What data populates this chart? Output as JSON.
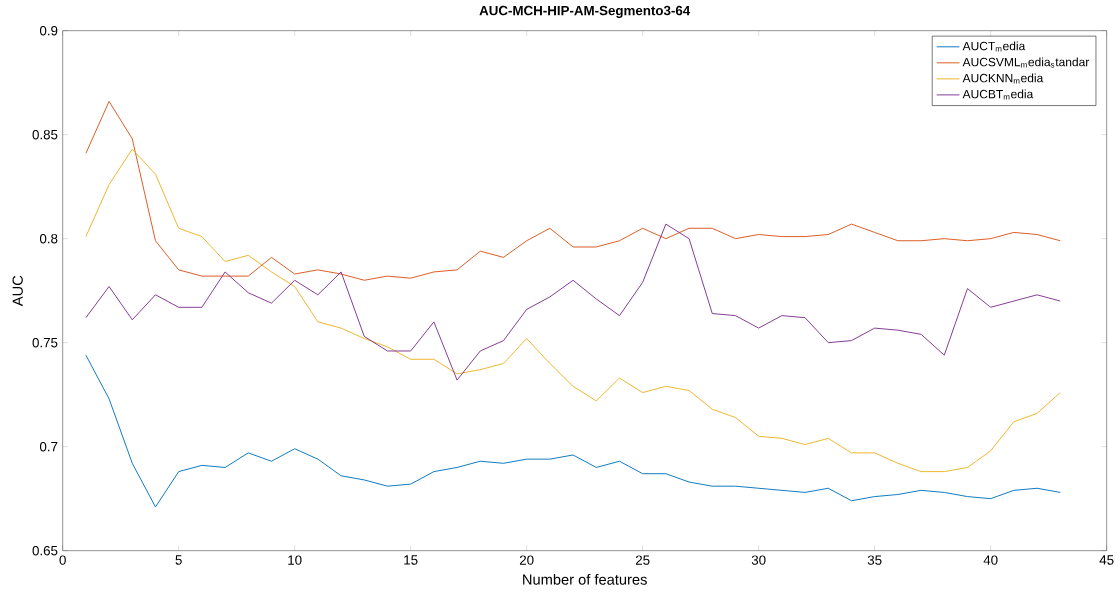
{
  "chart_data": {
    "type": "line",
    "title": "AUC-MCH-HIP-AM-Segmento3-64",
    "xlabel": "Number of features",
    "ylabel": "AUC",
    "x": [
      1,
      2,
      3,
      4,
      5,
      6,
      7,
      8,
      9,
      10,
      11,
      12,
      13,
      14,
      15,
      16,
      17,
      18,
      19,
      20,
      21,
      22,
      23,
      24,
      25,
      26,
      27,
      28,
      29,
      30,
      31,
      32,
      33,
      34,
      35,
      36,
      37,
      38,
      39,
      40,
      41,
      42,
      43
    ],
    "series": [
      {
        "name": "AUCT$_{m}$edia",
        "color": "#0072bd",
        "values": [
          0.744,
          0.723,
          0.692,
          0.671,
          0.688,
          0.691,
          0.69,
          0.697,
          0.693,
          0.699,
          0.694,
          0.686,
          0.684,
          0.681,
          0.682,
          0.688,
          0.69,
          0.693,
          0.692,
          0.694,
          0.694,
          0.696,
          0.69,
          0.693,
          0.687,
          0.687,
          0.683,
          0.681,
          0.681,
          0.68,
          0.679,
          0.678,
          0.68,
          0.674,
          0.676,
          0.677,
          0.679,
          0.678,
          0.676,
          0.675,
          0.679,
          0.68,
          0.678
        ]
      },
      {
        "name": "AUCSVML$_{m}$edia$_{s}$tandar",
        "color": "#d95319",
        "values": [
          0.841,
          0.866,
          0.848,
          0.799,
          0.785,
          0.782,
          0.782,
          0.782,
          0.791,
          0.783,
          0.785,
          0.783,
          0.78,
          0.782,
          0.781,
          0.784,
          0.785,
          0.794,
          0.791,
          0.799,
          0.805,
          0.796,
          0.796,
          0.799,
          0.805,
          0.8,
          0.805,
          0.805,
          0.8,
          0.802,
          0.801,
          0.801,
          0.802,
          0.807,
          0.803,
          0.799,
          0.799,
          0.8,
          0.799,
          0.8,
          0.803,
          0.802,
          0.799
        ]
      },
      {
        "name": "AUCKNN$_{m}$edia",
        "color": "#edb120",
        "values": [
          0.801,
          0.826,
          0.843,
          0.831,
          0.805,
          0.801,
          0.789,
          0.792,
          0.784,
          0.777,
          0.76,
          0.757,
          0.752,
          0.748,
          0.742,
          0.742,
          0.735,
          0.737,
          0.74,
          0.752,
          0.74,
          0.729,
          0.722,
          0.733,
          0.726,
          0.729,
          0.727,
          0.718,
          0.714,
          0.705,
          0.704,
          0.701,
          0.704,
          0.697,
          0.697,
          0.692,
          0.688,
          0.688,
          0.69,
          0.698,
          0.712,
          0.716,
          0.726
        ]
      },
      {
        "name": "AUCBT$_{m}$edia",
        "color": "#7e2f8e",
        "values": [
          0.762,
          0.777,
          0.761,
          0.773,
          0.767,
          0.767,
          0.784,
          0.774,
          0.769,
          0.78,
          0.773,
          0.784,
          0.753,
          0.746,
          0.746,
          0.76,
          0.732,
          0.746,
          0.751,
          0.766,
          0.772,
          0.78,
          0.771,
          0.763,
          0.779,
          0.807,
          0.8,
          0.764,
          0.763,
          0.757,
          0.763,
          0.762,
          0.75,
          0.751,
          0.757,
          0.756,
          0.754,
          0.744,
          0.776,
          0.767,
          0.77,
          0.773,
          0.77
        ]
      }
    ],
    "xlim": [
      0,
      45
    ],
    "xticks": [
      0,
      5,
      10,
      15,
      20,
      25,
      30,
      35,
      40,
      45
    ],
    "ylim": [
      0.65,
      0.9
    ],
    "yticks": [
      0.65,
      0.7,
      0.75,
      0.8,
      0.85,
      0.9
    ],
    "legend": "top right",
    "grid": false,
    "marker": "none",
    "line_style": "solid"
  }
}
